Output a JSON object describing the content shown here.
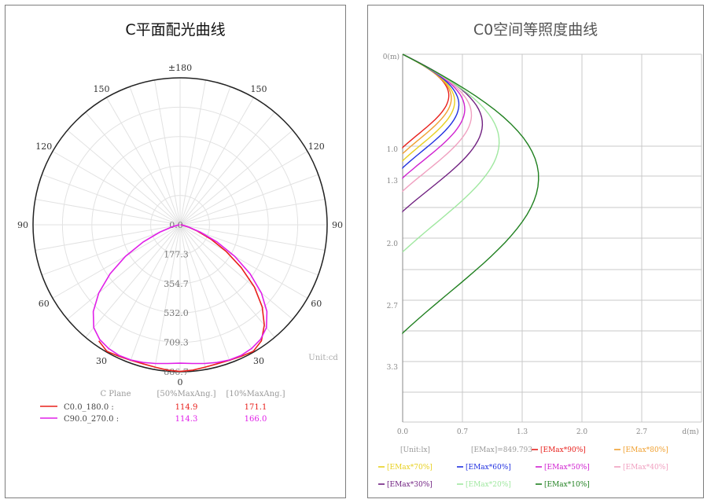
{
  "chart_data": [
    {
      "type": "polar",
      "title": "C平面配光曲线",
      "angle_labels": [
        "±180",
        "150",
        "120",
        "90",
        "60",
        "30",
        "0",
        "30",
        "60",
        "90",
        "120",
        "150"
      ],
      "radial_ticks": [
        "0.0",
        "177.3",
        "354.7",
        "532.0",
        "709.3",
        "886.7"
      ],
      "unit_label": "Unit:cd",
      "legend": {
        "header": [
          "C Plane",
          "[50%MaxAng.]",
          "[10%MaxAng.]"
        ],
        "rows": [
          {
            "plane": "C0.0_180.0 :",
            "half": "114.9",
            "tenth": "171.1",
            "color": "#e8201c"
          },
          {
            "plane": "C90.0_270.0 :",
            "half": "114.3",
            "tenth": "166.0",
            "color": "#e020e8"
          }
        ]
      },
      "series": [
        {
          "name": "C0.0_180.0",
          "color": "#e8201c",
          "angles": [
            -35,
            -30,
            -25,
            -20,
            -15,
            -10,
            -5,
            0,
            5,
            10,
            15,
            20,
            25,
            30,
            35,
            40,
            45,
            50,
            55,
            60,
            65,
            70,
            75,
            80,
            85,
            90
          ],
          "values": [
            855,
            882,
            875,
            870,
            868,
            872,
            880,
            885,
            880,
            872,
            868,
            870,
            875,
            882,
            855,
            790,
            700,
            585,
            450,
            320,
            205,
            110,
            50,
            18,
            8,
            4
          ]
        },
        {
          "name": "C90.0_270.0",
          "color": "#e020e8",
          "angles": [
            -90,
            -85,
            -80,
            -75,
            -70,
            -65,
            -60,
            -55,
            -50,
            -45,
            -40,
            -35,
            -30,
            -25,
            -20,
            -15,
            -10,
            -5,
            0,
            5,
            10,
            15,
            20,
            25,
            30,
            35,
            40,
            45,
            50,
            55,
            60,
            65,
            70,
            75,
            80,
            85,
            90
          ],
          "values": [
            4,
            8,
            18,
            55,
            130,
            245,
            380,
            515,
            640,
            740,
            810,
            845,
            862,
            870,
            868,
            860,
            850,
            840,
            835,
            840,
            850,
            860,
            868,
            870,
            862,
            845,
            810,
            740,
            640,
            515,
            380,
            245,
            130,
            55,
            18,
            8,
            4
          ]
        }
      ]
    },
    {
      "type": "isoline",
      "title": "C0空间等照度曲线",
      "y_origin_label": "0(m)",
      "y_ticks": [
        "1.0",
        "1.3",
        "2.0",
        "2.7",
        "3.3"
      ],
      "x_ticks": [
        "0.0",
        "0.7",
        "1.3",
        "2.0",
        "2.7"
      ],
      "x_unit": "d(m)",
      "unit_label": "[Unit:lx]",
      "emax_label": "[EMax]=849.793",
      "legend": [
        {
          "label": "[EMax*90%]",
          "color": "#e8201c"
        },
        {
          "label": "[EMax*80%]",
          "color": "#f0a030"
        },
        {
          "label": "[EMax*70%]",
          "color": "#e8d020"
        },
        {
          "label": "[EMax*60%]",
          "color": "#2030e0"
        },
        {
          "label": "[EMax*50%]",
          "color": "#d020d0"
        },
        {
          "label": "[EMax*40%]",
          "color": "#f0a0c0"
        },
        {
          "label": "[EMax*30%]",
          "color": "#702080"
        },
        {
          "label": "[EMax*20%]",
          "color": "#a0e8a0"
        },
        {
          "label": "[EMax*10%]",
          "color": "#208020"
        }
      ],
      "series": [
        {
          "name": "[EMax*90%]",
          "color": "#e8201c",
          "depth": 0.92,
          "width": 0.55
        },
        {
          "name": "[EMax*80%]",
          "color": "#f0a030",
          "depth": 0.98,
          "width": 0.58
        },
        {
          "name": "[EMax*70%]",
          "color": "#e8d020",
          "depth": 1.05,
          "width": 0.62
        },
        {
          "name": "[EMax*60%]",
          "color": "#2030e0",
          "depth": 1.12,
          "width": 0.67
        },
        {
          "name": "[EMax*50%]",
          "color": "#d020d0",
          "depth": 1.22,
          "width": 0.74
        },
        {
          "name": "[EMax*40%]",
          "color": "#f0a0c0",
          "depth": 1.35,
          "width": 0.82
        },
        {
          "name": "[EMax*30%]",
          "color": "#702080",
          "depth": 1.55,
          "width": 0.95
        },
        {
          "name": "[EMax*20%]",
          "color": "#a0e8a0",
          "depth": 1.95,
          "width": 1.15
        },
        {
          "name": "[EMax*10%]",
          "color": "#208020",
          "depth": 2.75,
          "width": 1.62
        }
      ]
    }
  ]
}
